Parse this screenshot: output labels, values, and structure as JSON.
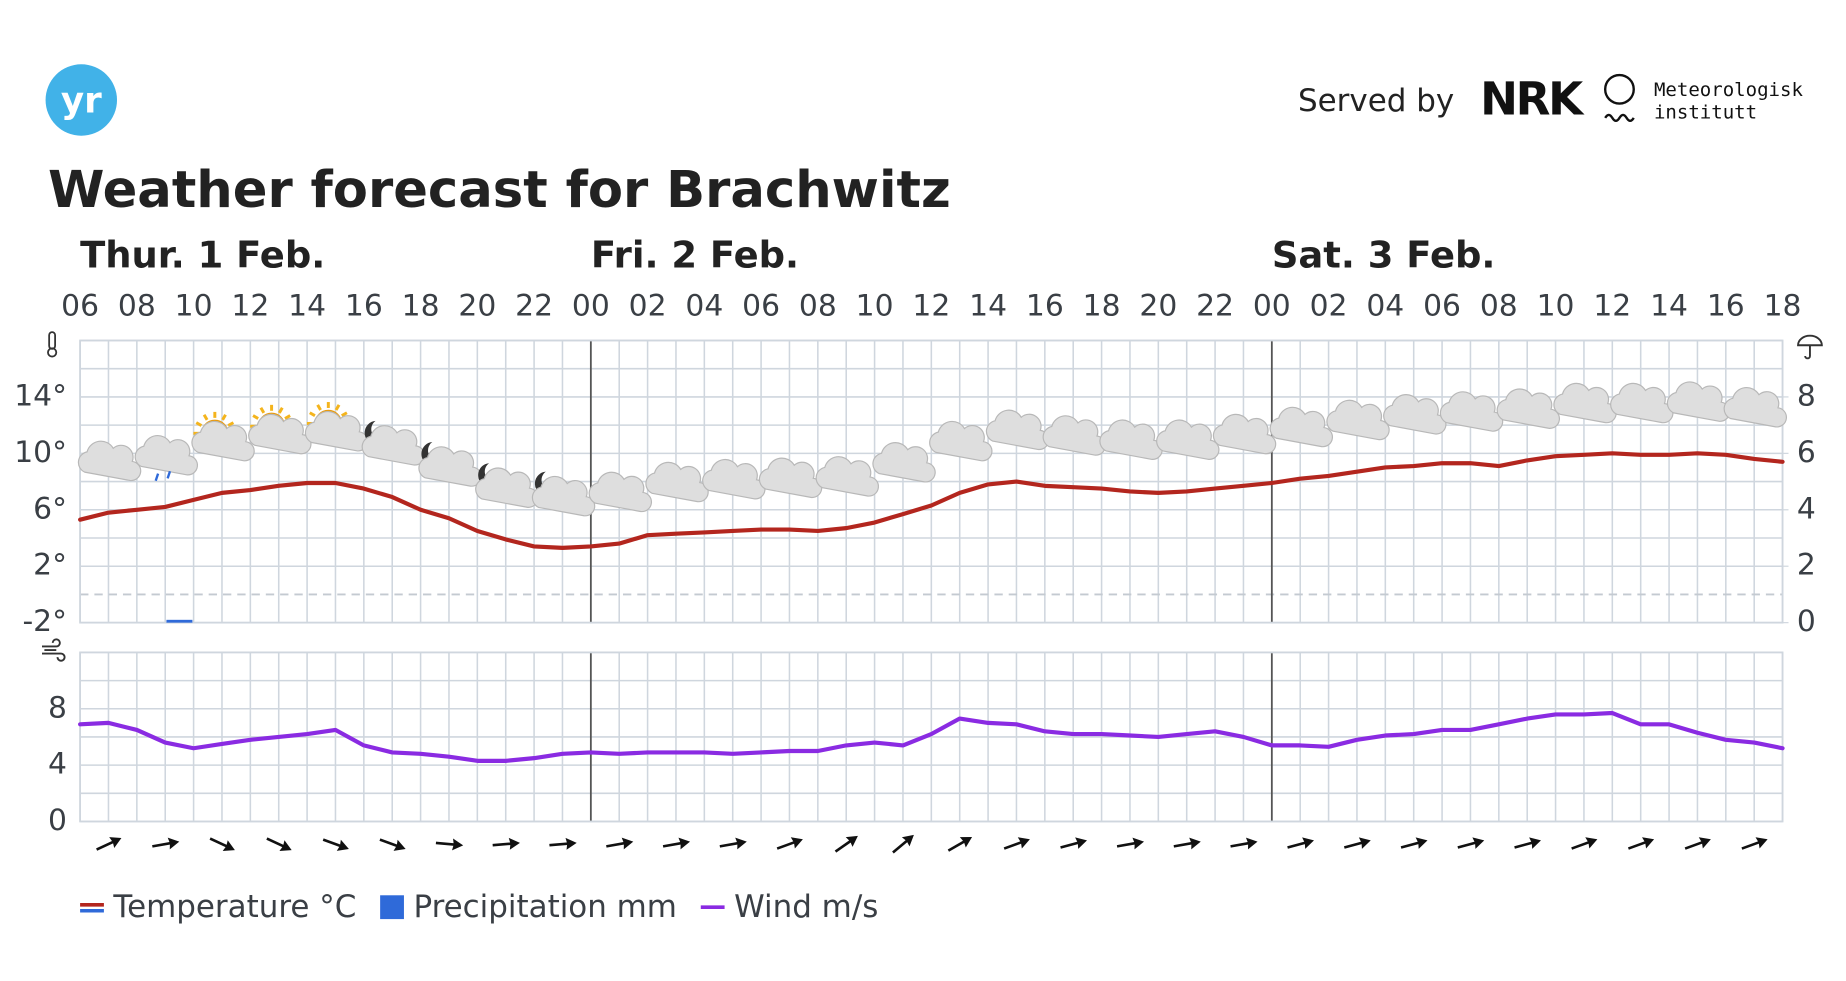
{
  "header": {
    "logo": "yr",
    "served_by": "Served by",
    "nrk": "NRK",
    "met": [
      "Meteorologisk",
      "institutt"
    ],
    "title": "Weather forecast for Brachwitz"
  },
  "chart_data": [
    {
      "type": "line",
      "days": [
        "Thur. 1 Feb.",
        "Fri. 2 Feb.",
        "Sat. 3 Feb."
      ],
      "categories": [
        "06",
        null,
        "08",
        null,
        "10",
        null,
        "12",
        null,
        "14",
        null,
        "16",
        null,
        "18",
        null,
        "20",
        null,
        "22",
        null,
        "00",
        null,
        "02",
        null,
        "04",
        null,
        "06",
        null,
        "08",
        null,
        "10",
        null,
        "12",
        null,
        "14",
        null,
        "16",
        null,
        "18",
        null,
        "20",
        null,
        "22",
        null,
        "00",
        null,
        "02",
        null,
        "04",
        null,
        "06",
        null,
        "08",
        null,
        "10",
        null,
        "12",
        null,
        "14",
        null,
        "16",
        null,
        "18"
      ],
      "series": [
        {
          "name": "Temperature °C",
          "color": "#b3261e",
          "cold_color": "#2f6ad9",
          "values": [
            5.3,
            5.8,
            6.0,
            6.2,
            6.7,
            7.2,
            7.4,
            7.7,
            7.9,
            7.9,
            7.5,
            6.9,
            6.0,
            5.4,
            4.5,
            3.9,
            3.4,
            3.3,
            3.4,
            3.6,
            4.2,
            4.3,
            4.4,
            4.5,
            4.6,
            4.6,
            4.5,
            4.7,
            5.1,
            5.7,
            6.3,
            7.2,
            7.8,
            8.0,
            7.7,
            7.6,
            7.5,
            7.3,
            7.2,
            7.3,
            7.5,
            7.7,
            7.9,
            8.2,
            8.4,
            8.7,
            9.0,
            9.1,
            9.3,
            9.3,
            9.1,
            9.5,
            9.8,
            9.9,
            10.0,
            9.9,
            9.9,
            10.0,
            9.9,
            9.6,
            9.4
          ]
        },
        {
          "name": "Precipitation mm",
          "type": "bar",
          "axis": "y2",
          "color": "#2f6ad9",
          "values": [
            0,
            0,
            0,
            0.1,
            0,
            0,
            0,
            0,
            0,
            0,
            0,
            0,
            0,
            0,
            0,
            0,
            0,
            0,
            0,
            0,
            0,
            0,
            0,
            0,
            0,
            0,
            0,
            0,
            0,
            0,
            0,
            0,
            0,
            0,
            0,
            0,
            0,
            0,
            0,
            0,
            0,
            0,
            0,
            0,
            0,
            0,
            0,
            0,
            0,
            0,
            0,
            0,
            0,
            0,
            0,
            0,
            0,
            0,
            0,
            0,
            0
          ]
        }
      ],
      "ylim": [
        -2,
        18
      ],
      "yticks": [
        {
          "value": -2,
          "label": "-2°"
        },
        {
          "value": 2,
          "label": "2°"
        },
        {
          "value": 6,
          "label": "6°"
        },
        {
          "value": 10,
          "label": "10°"
        },
        {
          "value": 14,
          "label": "14°"
        }
      ],
      "y2lim": [
        0,
        10
      ],
      "y2ticks": [
        0,
        2,
        4,
        6,
        8
      ],
      "zero_line": true,
      "grid": true
    },
    {
      "type": "line",
      "series": [
        {
          "name": "Wind m/s",
          "color": "#8a2be2",
          "values": [
            6.9,
            7.0,
            6.5,
            5.6,
            5.2,
            5.5,
            5.8,
            6.0,
            6.2,
            6.5,
            5.4,
            4.9,
            4.8,
            4.6,
            4.3,
            4.3,
            4.5,
            4.8,
            4.9,
            4.8,
            4.9,
            4.9,
            4.9,
            4.8,
            4.9,
            5.0,
            5.0,
            5.4,
            5.6,
            5.4,
            6.2,
            7.3,
            7.0,
            6.9,
            6.4,
            6.2,
            6.2,
            6.1,
            6.0,
            6.2,
            6.4,
            6.0,
            5.4,
            5.4,
            5.3,
            5.8,
            6.1,
            6.2,
            6.5,
            6.5,
            6.9,
            7.3,
            7.6,
            7.6,
            7.7,
            6.9,
            6.9,
            6.3,
            5.8,
            5.6,
            5.2
          ]
        }
      ],
      "ylim": [
        0,
        12
      ],
      "yticks": [
        0,
        4,
        8
      ],
      "grid": true
    }
  ]
}
